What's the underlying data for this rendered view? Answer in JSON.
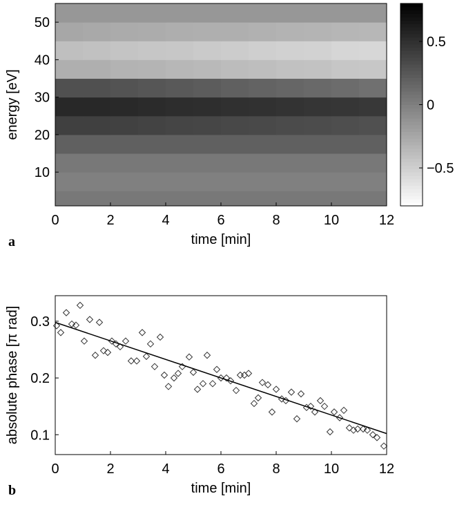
{
  "chart_data": [
    {
      "type": "heatmap",
      "panel_label": "a",
      "xlabel": "time [min]",
      "ylabel": "energy [eV]",
      "xlim": [
        0,
        12
      ],
      "ylim": [
        1,
        55
      ],
      "xticks": [
        0,
        2,
        4,
        6,
        8,
        10,
        12
      ],
      "yticks": [
        10,
        20,
        30,
        40,
        50
      ],
      "xbins": [
        0,
        1,
        2,
        3,
        4,
        5,
        6,
        7,
        8,
        9,
        10,
        11,
        12
      ],
      "ybins": [
        1,
        5,
        10,
        15,
        20,
        25,
        30,
        35,
        40,
        45,
        50,
        55
      ],
      "values": [
        [
          0.05,
          0.05,
          0.05,
          0.05,
          0.05,
          0.05,
          0.05,
          0.05,
          0.05,
          0.05,
          0.05,
          0.05
        ],
        [
          0.0,
          0.0,
          0.0,
          0.0,
          0.0,
          0.0,
          0.0,
          0.0,
          0.0,
          0.0,
          0.0,
          0.0
        ],
        [
          0.05,
          0.05,
          0.05,
          0.05,
          0.05,
          0.05,
          0.05,
          0.05,
          0.05,
          0.05,
          0.05,
          0.05
        ],
        [
          0.2,
          0.2,
          0.2,
          0.2,
          0.2,
          0.2,
          0.2,
          0.2,
          0.2,
          0.2,
          0.2,
          0.2
        ],
        [
          0.4,
          0.4,
          0.39,
          0.38,
          0.37,
          0.36,
          0.35,
          0.34,
          0.33,
          0.32,
          0.31,
          0.3
        ],
        [
          0.55,
          0.55,
          0.54,
          0.53,
          0.52,
          0.51,
          0.5,
          0.49,
          0.48,
          0.47,
          0.46,
          0.45
        ],
        [
          0.3,
          0.3,
          0.28,
          0.26,
          0.24,
          0.22,
          0.2,
          0.18,
          0.16,
          0.14,
          0.12,
          0.1
        ],
        [
          -0.3,
          -0.3,
          -0.32,
          -0.33,
          -0.35,
          -0.36,
          -0.38,
          -0.39,
          -0.41,
          -0.42,
          -0.44,
          -0.45
        ],
        [
          -0.4,
          -0.41,
          -0.43,
          -0.44,
          -0.45,
          -0.47,
          -0.48,
          -0.5,
          -0.51,
          -0.52,
          -0.54,
          -0.55
        ],
        [
          -0.25,
          -0.26,
          -0.27,
          -0.28,
          -0.29,
          -0.3,
          -0.3,
          -0.31,
          -0.32,
          -0.33,
          -0.34,
          -0.35
        ],
        [
          -0.15,
          -0.15,
          -0.15,
          -0.15,
          -0.15,
          -0.15,
          -0.15,
          -0.15,
          -0.15,
          -0.15,
          -0.15,
          -0.15
        ]
      ],
      "clim": [
        -0.8,
        0.8
      ],
      "cticks": [
        {
          "value": -0.5,
          "label": "−0.5"
        },
        0,
        0.5
      ]
    },
    {
      "type": "scatter",
      "panel_label": "b",
      "xlabel": "time [min]",
      "ylabel": "absolute phase [π rad]",
      "xlim": [
        0,
        12
      ],
      "ylim": [
        0.065,
        0.345
      ],
      "xticks": [
        0,
        2,
        4,
        6,
        8,
        10,
        12
      ],
      "yticks": [
        0.1,
        0.2,
        0.3
      ],
      "series": [
        {
          "kind": "markers",
          "color": "#333333",
          "x": [
            0.05,
            0.2,
            0.4,
            0.6,
            0.75,
            0.9,
            1.05,
            1.25,
            1.45,
            1.6,
            1.75,
            1.9,
            2.05,
            2.2,
            2.35,
            2.55,
            2.75,
            2.95,
            3.15,
            3.3,
            3.45,
            3.6,
            3.8,
            3.95,
            4.1,
            4.3,
            4.45,
            4.6,
            4.85,
            5.0,
            5.15,
            5.35,
            5.5,
            5.7,
            5.85,
            6.0,
            6.2,
            6.35,
            6.55,
            6.7,
            6.85,
            7.0,
            7.2,
            7.35,
            7.5,
            7.7,
            7.85,
            8.0,
            8.2,
            8.35,
            8.55,
            8.75,
            8.9,
            9.1,
            9.25,
            9.4,
            9.6,
            9.75,
            9.95,
            10.1,
            10.3,
            10.45,
            10.65,
            10.8,
            10.95,
            11.15,
            11.3,
            11.5,
            11.65,
            11.9
          ],
          "values": [
            0.292,
            0.28,
            0.315,
            0.295,
            0.293,
            0.328,
            0.265,
            0.303,
            0.24,
            0.298,
            0.248,
            0.245,
            0.265,
            0.26,
            0.255,
            0.265,
            0.23,
            0.23,
            0.28,
            0.238,
            0.26,
            0.22,
            0.272,
            0.205,
            0.185,
            0.2,
            0.208,
            0.22,
            0.237,
            0.21,
            0.18,
            0.19,
            0.24,
            0.19,
            0.215,
            0.2,
            0.2,
            0.195,
            0.178,
            0.205,
            0.205,
            0.208,
            0.155,
            0.165,
            0.192,
            0.188,
            0.14,
            0.18,
            0.163,
            0.16,
            0.175,
            0.128,
            0.172,
            0.148,
            0.15,
            0.14,
            0.16,
            0.15,
            0.105,
            0.14,
            0.13,
            0.143,
            0.112,
            0.108,
            0.11,
            0.11,
            0.108,
            0.1,
            0.095,
            0.08
          ]
        },
        {
          "kind": "line",
          "color": "#000000",
          "x": [
            0,
            12
          ],
          "values": [
            0.298,
            0.102
          ]
        }
      ]
    }
  ]
}
